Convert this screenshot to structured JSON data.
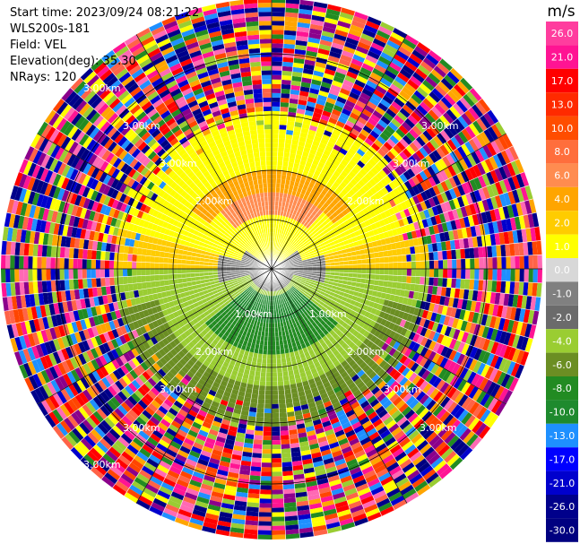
{
  "header": {
    "start_time": "Start time: 2023/09/24 08:21:22",
    "station": "WLS200s-181",
    "field": "Field: VEL",
    "elevation": "Elevation(deg): 35.30",
    "nrays": "NRays: 120"
  },
  "colorbar": {
    "unit": "m/s",
    "ticks": [
      "26.0",
      "21.0",
      "17.0",
      "13.0",
      "10.0",
      "8.0",
      "6.0",
      "4.0",
      "2.0",
      "1.0",
      "0.0",
      "-1.0",
      "-2.0",
      "-4.0",
      "-6.0",
      "-8.0",
      "-10.0",
      "-13.0",
      "-17.0",
      "-21.0",
      "-26.0",
      "-30.0"
    ],
    "colors": [
      "#ff3d9e",
      "#ff1493",
      "#ff0000",
      "#ff2a00",
      "#ff4d00",
      "#ff6e3c",
      "#ff8c50",
      "#ffa500",
      "#ffcc00",
      "#ffff00",
      "#d8d8d8",
      "#808080",
      "#6b6b6b",
      "#9acd32",
      "#6b8e23",
      "#228b22",
      "#1e8a2e",
      "#1e90ff",
      "#0000ff",
      "#0000cd",
      "#00008b",
      "#000080"
    ]
  },
  "range_labels": {
    "ring1": "1.00km",
    "ring2": "2.00km",
    "ring3": "3.00km"
  },
  "ppi": {
    "field": "VEL",
    "n_rays": 120,
    "elevation_deg": 35.3
  }
}
